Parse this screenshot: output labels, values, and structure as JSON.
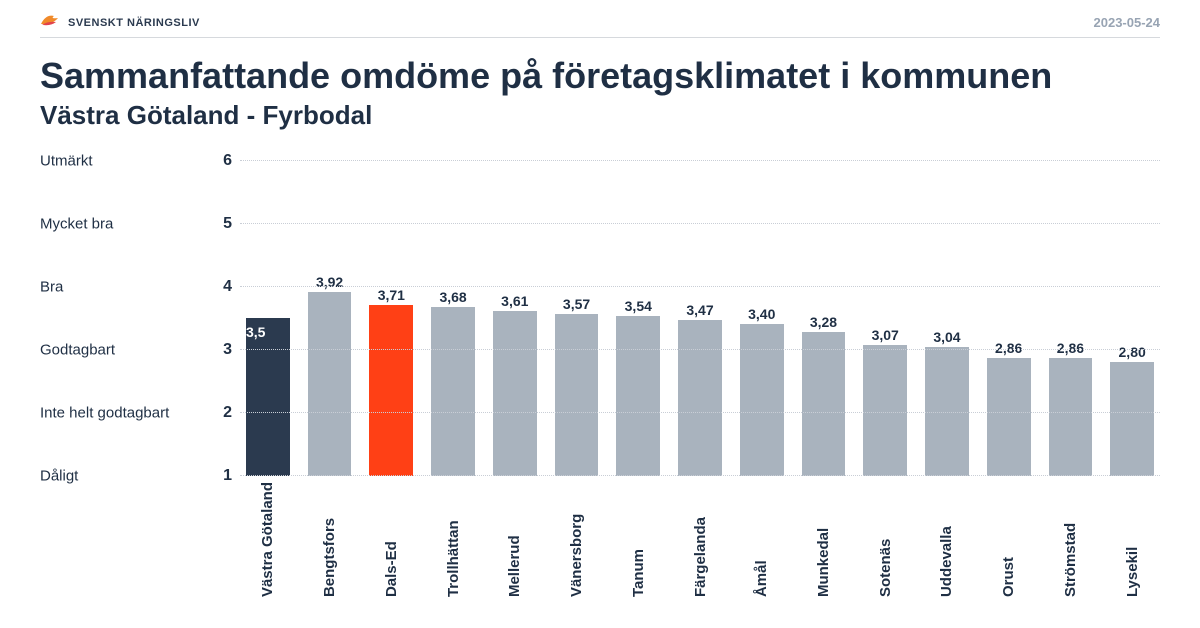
{
  "header": {
    "brand_text": "SVENSKT NÄRINGSLIV",
    "brand_icon_color": "#f08a2a",
    "date": "2023-05-24",
    "date_color": "#98a4b3",
    "rule_color": "#d6d9dd"
  },
  "title": "Sammanfattande omdöme på företagsklimatet i kommunen",
  "subtitle": "Västra Götaland - Fyrbodal",
  "text_color": "#1f2f44",
  "chart": {
    "type": "bar",
    "background_color": "#ffffff",
    "grid_color": "#c9ced6",
    "ylim": [
      1,
      6
    ],
    "ytick_step": 1,
    "y_ticks": [
      1,
      2,
      3,
      4,
      5,
      6
    ],
    "y_category_labels": [
      {
        "value": 1,
        "label": "Dåligt"
      },
      {
        "value": 2,
        "label": "Inte helt godtagbart"
      },
      {
        "value": 3,
        "label": "Godtagbart"
      },
      {
        "value": 4,
        "label": "Bra"
      },
      {
        "value": 5,
        "label": "Mycket bra"
      },
      {
        "value": 6,
        "label": "Utmärkt"
      }
    ],
    "default_bar_color": "#a9b3be",
    "highlight_dark_color": "#2b3a4f",
    "highlight_orange_color": "#ff4015",
    "bar_width": 0.72,
    "label_fontsize": 15,
    "tick_fontsize": 16,
    "value_fontsize": 14,
    "bars": [
      {
        "label": "Västra Götaland",
        "value": 3.5,
        "display": "3,5",
        "color": "#2b3a4f",
        "value_inside": true
      },
      {
        "label": "Bengtsfors",
        "value": 3.92,
        "display": "3,92",
        "color": "#a9b3be"
      },
      {
        "label": "Dals-Ed",
        "value": 3.71,
        "display": "3,71",
        "color": "#ff4015"
      },
      {
        "label": "Trollhättan",
        "value": 3.68,
        "display": "3,68",
        "color": "#a9b3be"
      },
      {
        "label": "Mellerud",
        "value": 3.61,
        "display": "3,61",
        "color": "#a9b3be"
      },
      {
        "label": "Vänersborg",
        "value": 3.57,
        "display": "3,57",
        "color": "#a9b3be"
      },
      {
        "label": "Tanum",
        "value": 3.54,
        "display": "3,54",
        "color": "#a9b3be"
      },
      {
        "label": "Färgelanda",
        "value": 3.47,
        "display": "3,47",
        "color": "#a9b3be"
      },
      {
        "label": "Åmål",
        "value": 3.4,
        "display": "3,40",
        "color": "#a9b3be"
      },
      {
        "label": "Munkedal",
        "value": 3.28,
        "display": "3,28",
        "color": "#a9b3be"
      },
      {
        "label": "Sotenäs",
        "value": 3.07,
        "display": "3,07",
        "color": "#a9b3be"
      },
      {
        "label": "Uddevalla",
        "value": 3.04,
        "display": "3,04",
        "color": "#a9b3be"
      },
      {
        "label": "Orust",
        "value": 2.86,
        "display": "2,86",
        "color": "#a9b3be"
      },
      {
        "label": "Strömstad",
        "value": 2.86,
        "display": "2,86",
        "color": "#a9b3be"
      },
      {
        "label": "Lysekil",
        "value": 2.8,
        "display": "2,80",
        "color": "#a9b3be"
      }
    ]
  }
}
